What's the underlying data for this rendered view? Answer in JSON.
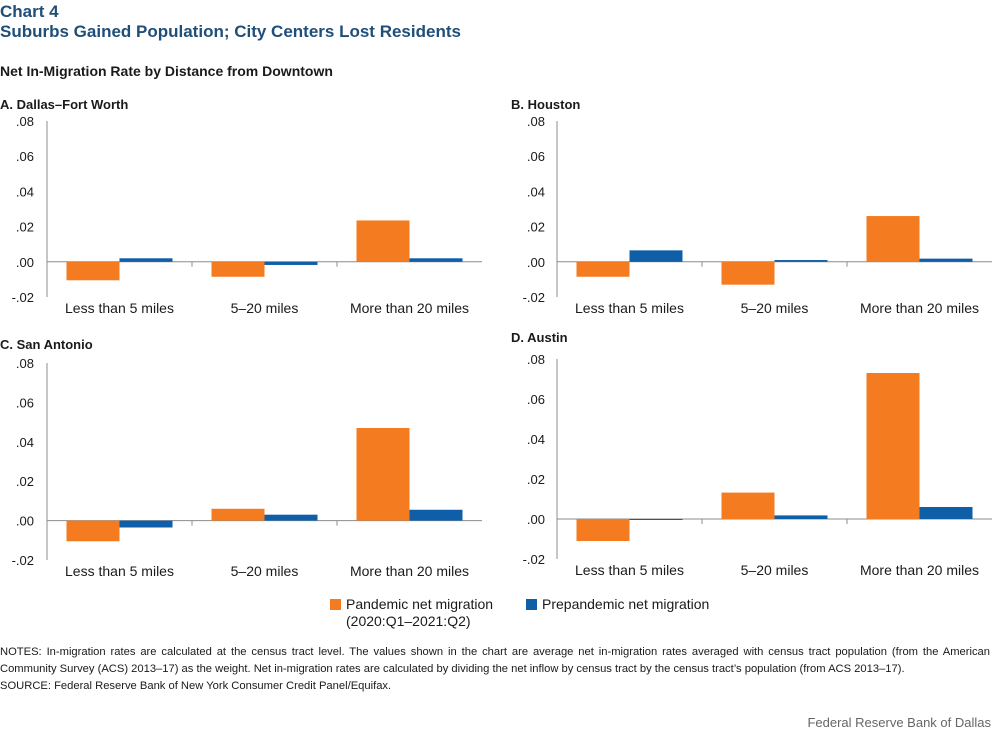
{
  "header": {
    "chart_label": "Chart 4",
    "title": "Suburbs Gained Population; City Centers Lost Residents",
    "subtitle": "Net In-Migration Rate by Distance from Downtown"
  },
  "colors": {
    "pandemic": "#f47b20",
    "prepandemic": "#0f5fa8",
    "axis": "#8c8c8c"
  },
  "chart_data": [
    {
      "type": "bar",
      "title": "A. Dallas–Fort Worth",
      "categories": [
        "Less than 5 miles",
        "5–20 miles",
        "More than 20 miles"
      ],
      "series": [
        {
          "name": "Pandemic net migration (2020:Q1–2021:Q2)",
          "values": [
            -0.0105,
            -0.0085,
            0.0235
          ]
        },
        {
          "name": "Prepandemic net migration",
          "values": [
            0.002,
            -0.0018,
            0.002
          ]
        }
      ],
      "yticks": [
        ".08",
        ".06",
        ".04",
        ".02",
        ".00",
        "-.02"
      ],
      "ylim": [
        -0.02,
        0.08
      ]
    },
    {
      "type": "bar",
      "title": "B. Houston",
      "categories": [
        "Less than 5 miles",
        "5–20 miles",
        "More than 20 miles"
      ],
      "series": [
        {
          "name": "Pandemic net migration (2020:Q1–2021:Q2)",
          "values": [
            -0.0085,
            -0.013,
            0.026
          ]
        },
        {
          "name": "Prepandemic net migration",
          "values": [
            0.0065,
            0.001,
            0.0018
          ]
        }
      ],
      "yticks": [
        ".08",
        ".06",
        ".04",
        ".02",
        ".00",
        "-.02"
      ],
      "ylim": [
        -0.02,
        0.08
      ]
    },
    {
      "type": "bar",
      "title": "C. San Antonio",
      "categories": [
        "Less than 5 miles",
        "5–20 miles",
        "More than 20 miles"
      ],
      "series": [
        {
          "name": "Pandemic net migration (2020:Q1–2021:Q2)",
          "values": [
            -0.0105,
            0.006,
            0.047
          ]
        },
        {
          "name": "Prepandemic net migration",
          "values": [
            -0.0035,
            0.003,
            0.0055
          ]
        }
      ],
      "yticks": [
        ".08",
        ".06",
        ".04",
        ".02",
        ".00",
        "-.02"
      ],
      "ylim": [
        -0.02,
        0.08
      ]
    },
    {
      "type": "bar",
      "title": "D. Austin",
      "categories": [
        "Less than 5 miles",
        "5–20 miles",
        "More than 20 miles"
      ],
      "series": [
        {
          "name": "Pandemic net migration (2020:Q1–2021:Q2)",
          "values": [
            -0.011,
            0.0132,
            0.073
          ]
        },
        {
          "name": "Prepandemic net migration",
          "values": [
            -0.0005,
            0.0018,
            0.006
          ]
        }
      ],
      "yticks": [
        ".08",
        ".06",
        ".04",
        ".02",
        ".00",
        "-.02"
      ],
      "ylim": [
        -0.02,
        0.08
      ]
    }
  ],
  "legend": {
    "pandemic_line1": "Pandemic net migration",
    "pandemic_line2": "(2020:Q1–2021:Q2)",
    "prepandemic": "Prepandemic net migration"
  },
  "notes": {
    "text": "NOTES: In-migration rates are calculated at the census tract level. The values shown in the chart are average net in-migration rates averaged with census tract population (from the American Community Survey (ACS) 2013–17) as the weight. Net in-migration rates are calculated by dividing the net inflow by census tract by the census tract’s population (from ACS 2013–17).",
    "source": "SOURCE: Federal Reserve Bank of New York Consumer Credit Panel/Equifax."
  },
  "credit": "Federal Reserve Bank of Dallas"
}
